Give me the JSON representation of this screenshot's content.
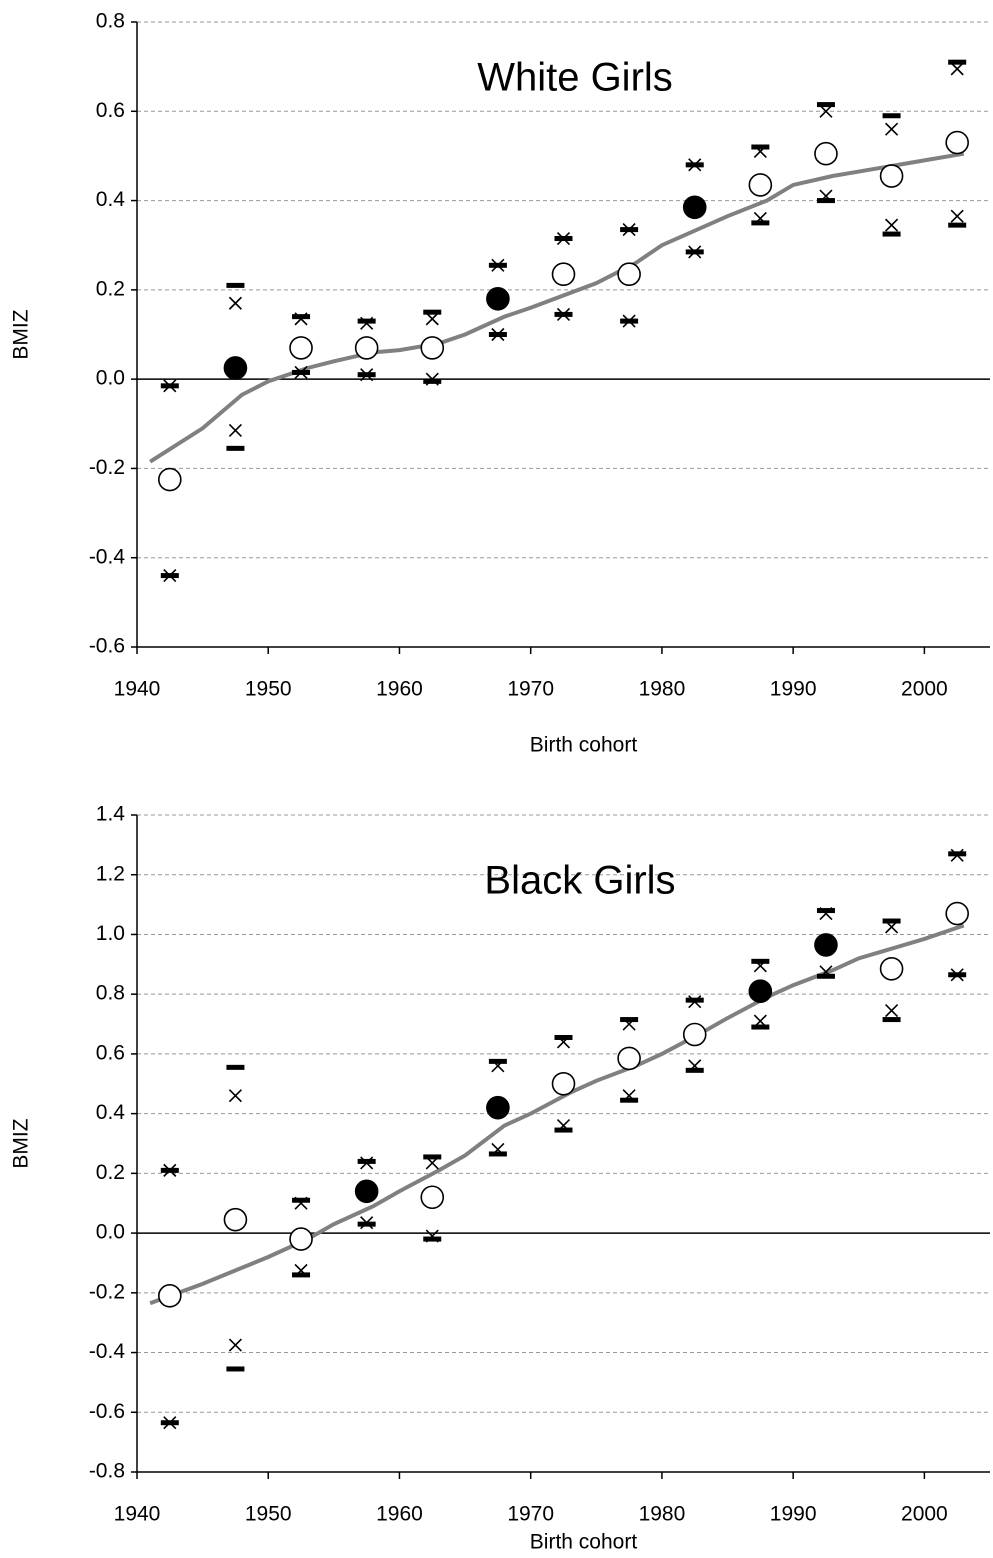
{
  "chart_data": [
    {
      "type": "scatter",
      "title": "White Girls",
      "x_label": "Birth cohort",
      "y_label": "BMIZ",
      "xlim": [
        1940,
        2005
      ],
      "ylim": [
        -0.6,
        0.8
      ],
      "xticks": [
        1940,
        1950,
        1960,
        1970,
        1980,
        1990,
        2000
      ],
      "yticks": [
        0.8,
        0.6,
        0.4,
        0.2,
        {
          "value": 0,
          "label": "0.0"
        },
        -0.2,
        -0.4,
        -0.6
      ],
      "grid": true,
      "series": [
        {
          "marker": "line",
          "color": "#808080",
          "x": [
            1941,
            1945,
            1948,
            1950,
            1953,
            1955,
            1958,
            1960,
            1963,
            1965,
            1968,
            1970,
            1975,
            1978,
            1980,
            1985,
            1988,
            1990,
            1993,
            1995,
            2000,
            2003
          ],
          "values": [
            -0.185,
            -0.11,
            -0.035,
            -0.005,
            0.025,
            0.04,
            0.06,
            0.065,
            0.08,
            0.1,
            0.14,
            0.16,
            0.215,
            0.26,
            0.3,
            0.365,
            0.4,
            0.435,
            0.455,
            0.465,
            0.49,
            0.505
          ]
        },
        {
          "marker": "dash",
          "color": "#000000",
          "x": [
            1942.5,
            1947.5,
            1952.5,
            1957.5,
            1962.5,
            1967.5,
            1972.5,
            1977.5,
            1982.5,
            1987.5,
            1992.5,
            1997.5,
            2002.5
          ],
          "values": [
            -0.015,
            0.21,
            0.14,
            0.13,
            0.15,
            0.255,
            0.315,
            0.335,
            0.48,
            0.52,
            0.615,
            0.59,
            0.71
          ]
        },
        {
          "marker": "dash",
          "color": "#000000",
          "x": [
            1942.5,
            1947.5,
            1952.5,
            1957.5,
            1962.5,
            1967.5,
            1972.5,
            1977.5,
            1982.5,
            1987.5,
            1992.5,
            1997.5,
            2002.5
          ],
          "values": [
            -0.44,
            -0.155,
            0.015,
            0.01,
            -0.005,
            0.1,
            0.145,
            0.13,
            0.285,
            0.35,
            0.4,
            0.325,
            0.345
          ]
        },
        {
          "marker": "cross",
          "color": "#000000",
          "x": [
            1942.5,
            1947.5,
            1952.5,
            1957.5,
            1962.5,
            1967.5,
            1972.5,
            1977.5,
            1982.5,
            1987.5,
            1992.5,
            1997.5,
            2002.5
          ],
          "values": [
            -0.015,
            0.17,
            0.135,
            0.125,
            0.135,
            0.255,
            0.315,
            0.335,
            0.48,
            0.51,
            0.6,
            0.56,
            0.695
          ]
        },
        {
          "marker": "cross",
          "color": "#000000",
          "x": [
            1942.5,
            1947.5,
            1952.5,
            1957.5,
            1962.5,
            1967.5,
            1972.5,
            1977.5,
            1982.5,
            1987.5,
            1992.5,
            1997.5,
            2002.5
          ],
          "values": [
            -0.44,
            -0.115,
            0.015,
            0.01,
            0,
            0.1,
            0.145,
            0.13,
            0.285,
            0.36,
            0.41,
            0.345,
            0.365
          ]
        },
        {
          "marker": "circle-open",
          "color": "#000000",
          "x": [
            1942.5,
            1947.5,
            1952.5,
            1957.5,
            1962.5,
            1967.5,
            1972.5,
            1977.5,
            1982.5,
            1987.5,
            1992.5,
            1997.5,
            2002.5
          ],
          "values": [
            -0.225,
            null,
            0.07,
            0.07,
            0.07,
            null,
            0.235,
            0.235,
            null,
            0.435,
            0.505,
            0.455,
            0.53
          ]
        },
        {
          "marker": "circle-filled",
          "color": "#000000",
          "x": [
            1942.5,
            1947.5,
            1952.5,
            1957.5,
            1962.5,
            1967.5,
            1972.5,
            1977.5,
            1982.5,
            1987.5,
            1992.5,
            1997.5,
            2002.5
          ],
          "values": [
            null,
            0.025,
            null,
            null,
            null,
            0.18,
            null,
            null,
            0.385,
            null,
            null,
            null,
            null
          ]
        }
      ]
    },
    {
      "type": "scatter",
      "title": "Black Girls",
      "x_label": "Birth cohort",
      "y_label": "BMIZ",
      "xlim": [
        1940,
        2005
      ],
      "ylim": [
        -0.8,
        1.4
      ],
      "xticks": [
        1940,
        1950,
        1960,
        1970,
        1980,
        1990,
        2000
      ],
      "yticks": [
        1.4,
        1.2,
        {
          "value": 1,
          "label": "1.0"
        },
        0.8,
        0.6,
        0.4,
        0.2,
        {
          "value": 0,
          "label": "0.0"
        },
        -0.2,
        -0.4,
        -0.6,
        -0.8
      ],
      "grid": true,
      "series": [
        {
          "marker": "line",
          "color": "#808080",
          "x": [
            1941,
            1945,
            1950,
            1953,
            1955,
            1958,
            1960,
            1963,
            1965,
            1968,
            1970,
            1973,
            1975,
            1978,
            1980,
            1983,
            1985,
            1988,
            1990,
            1993,
            1995,
            2000,
            2003
          ],
          "values": [
            -0.235,
            -0.17,
            -0.08,
            -0.02,
            0.03,
            0.09,
            0.14,
            0.21,
            0.26,
            0.36,
            0.4,
            0.47,
            0.51,
            0.56,
            0.6,
            0.67,
            0.72,
            0.79,
            0.83,
            0.88,
            0.92,
            0.985,
            1.03
          ]
        },
        {
          "marker": "dash",
          "color": "#000000",
          "x": [
            1942.5,
            1947.5,
            1952.5,
            1957.5,
            1962.5,
            1967.5,
            1972.5,
            1977.5,
            1982.5,
            1987.5,
            1992.5,
            1997.5,
            2002.5
          ],
          "values": [
            0.21,
            0.555,
            0.11,
            0.24,
            0.255,
            0.575,
            0.655,
            0.715,
            0.78,
            0.91,
            1.08,
            1.045,
            1.27
          ]
        },
        {
          "marker": "dash",
          "color": "#000000",
          "x": [
            1942.5,
            1947.5,
            1952.5,
            1957.5,
            1962.5,
            1967.5,
            1972.5,
            1977.5,
            1982.5,
            1987.5,
            1992.5,
            1997.5,
            2002.5
          ],
          "values": [
            -0.635,
            -0.455,
            -0.14,
            0.03,
            -0.02,
            0.265,
            0.345,
            0.445,
            0.545,
            0.69,
            0.86,
            0.715,
            0.865
          ]
        },
        {
          "marker": "cross",
          "color": "#000000",
          "x": [
            1942.5,
            1947.5,
            1952.5,
            1957.5,
            1962.5,
            1967.5,
            1972.5,
            1977.5,
            1982.5,
            1987.5,
            1992.5,
            1997.5,
            2002.5
          ],
          "values": [
            0.21,
            0.46,
            0.1,
            0.235,
            0.235,
            0.56,
            0.64,
            0.7,
            0.775,
            0.895,
            1.07,
            1.025,
            1.265
          ]
        },
        {
          "marker": "cross",
          "color": "#000000",
          "x": [
            1942.5,
            1947.5,
            1952.5,
            1957.5,
            1962.5,
            1967.5,
            1972.5,
            1977.5,
            1982.5,
            1987.5,
            1992.5,
            1997.5,
            2002.5
          ],
          "values": [
            -0.635,
            -0.375,
            -0.125,
            0.035,
            -0.01,
            0.28,
            0.36,
            0.46,
            0.56,
            0.71,
            0.875,
            0.745,
            0.865
          ]
        },
        {
          "marker": "circle-open",
          "color": "#000000",
          "x": [
            1942.5,
            1947.5,
            1952.5,
            1957.5,
            1962.5,
            1967.5,
            1972.5,
            1977.5,
            1982.5,
            1987.5,
            1992.5,
            1997.5,
            2002.5
          ],
          "values": [
            -0.21,
            0.045,
            -0.02,
            null,
            0.12,
            null,
            0.5,
            0.585,
            0.665,
            null,
            null,
            0.885,
            1.07
          ]
        },
        {
          "marker": "circle-filled",
          "color": "#000000",
          "x": [
            1942.5,
            1947.5,
            1952.5,
            1957.5,
            1962.5,
            1967.5,
            1972.5,
            1977.5,
            1982.5,
            1987.5,
            1992.5,
            1997.5,
            2002.5
          ],
          "values": [
            null,
            null,
            null,
            0.14,
            null,
            0.42,
            null,
            null,
            null,
            0.81,
            0.965,
            null,
            null
          ]
        }
      ]
    }
  ]
}
